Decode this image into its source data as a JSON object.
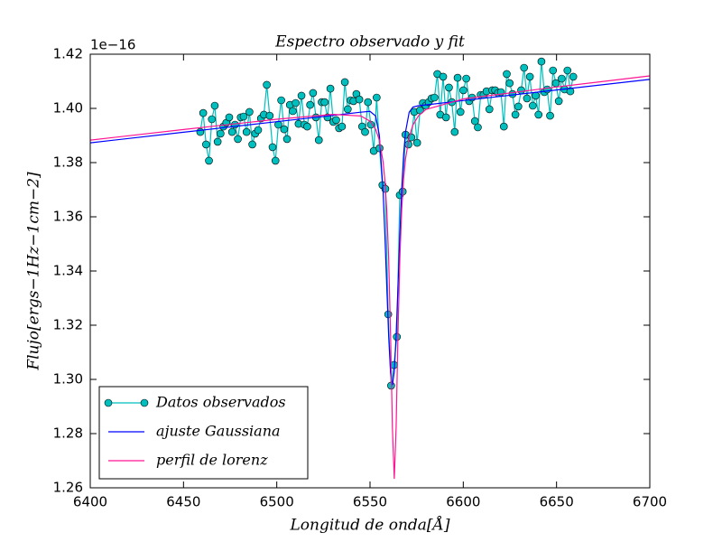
{
  "chart_data": {
    "type": "line",
    "title": "Espectro observado y fit",
    "xlabel": "Longitud de onda[Å]",
    "ylabel": "Flujo[ergs−1Hz−1cm−2]",
    "y_offset_label": "1e−16",
    "xlim": [
      6400,
      6700
    ],
    "ylim": [
      1.26,
      1.42
    ],
    "xticks": [
      6400,
      6450,
      6500,
      6550,
      6600,
      6650,
      6700
    ],
    "yticks": [
      1.26,
      1.28,
      {
        "value": 1.3,
        "label": "1.30"
      },
      1.32,
      1.34,
      1.36,
      1.38,
      {
        "value": 1.4,
        "label": "1.40"
      },
      1.42
    ],
    "legend": "lower left",
    "series": [
      {
        "name": "Datos observados",
        "color": "#00bfbf",
        "marker": "o",
        "x": [
          6459.0,
          6460.55,
          6462.1,
          6463.65,
          6465.2,
          6466.75,
          6468.3,
          6469.85,
          6471.4,
          6472.95,
          6474.5,
          6476.05,
          6477.6,
          6479.15,
          6480.7,
          6482.25,
          6483.8,
          6485.35,
          6486.9,
          6488.45,
          6490.0,
          6491.55,
          6493.1,
          6494.65,
          6496.2,
          6497.75,
          6499.3,
          6500.85,
          6502.4,
          6503.95,
          6505.5,
          6507.05,
          6508.6,
          6510.15,
          6511.7,
          6513.25,
          6514.8,
          6516.35,
          6517.9,
          6519.45,
          6521.0,
          6522.55,
          6524.1,
          6525.65,
          6527.2,
          6528.75,
          6530.3,
          6531.85,
          6533.4,
          6534.95,
          6536.5,
          6538.05,
          6539.6,
          6541.15,
          6542.7,
          6544.25,
          6545.8,
          6547.35,
          6548.9,
          6550.45,
          6552.0,
          6553.55,
          6555.1,
          6556.65,
          6558.2,
          6559.75,
          6561.3,
          6562.85,
          6564.4,
          6565.95,
          6567.5,
          6569.05,
          6570.6,
          6572.15,
          6573.7,
          6575.25,
          6576.8,
          6578.35,
          6579.9,
          6581.45,
          6583.0,
          6584.55,
          6586.1,
          6587.65,
          6589.2,
          6590.75,
          6592.3,
          6593.85,
          6595.4,
          6596.95,
          6598.5,
          6600.05,
          6601.6,
          6603.15,
          6604.7,
          6606.25,
          6607.8,
          6609.35,
          6610.9,
          6612.45,
          6614.0,
          6615.55,
          6617.1,
          6618.65,
          6620.2,
          6621.75,
          6623.3,
          6624.85,
          6626.4,
          6627.95,
          6629.5,
          6631.05,
          6632.6,
          6634.15,
          6635.7,
          6637.25,
          6638.8,
          6640.35,
          6641.9,
          6643.45,
          6645.0,
          6646.55,
          6648.1,
          6649.65,
          6651.2,
          6652.75,
          6654.3,
          6655.85,
          6657.4,
          6658.95
        ],
        "values": [
          1.3913,
          1.3983,
          1.3867,
          1.3807,
          1.396,
          1.401,
          1.3877,
          1.3907,
          1.3933,
          1.3947,
          1.3967,
          1.3913,
          1.394,
          1.3887,
          1.3967,
          1.397,
          1.3913,
          1.3987,
          1.3867,
          1.3907,
          1.392,
          1.3963,
          1.3977,
          1.4087,
          1.3973,
          1.3857,
          1.3807,
          1.394,
          1.403,
          1.3923,
          1.3887,
          1.4013,
          1.399,
          1.402,
          1.3943,
          1.4047,
          1.394,
          1.3933,
          1.4013,
          1.4057,
          1.3967,
          1.3883,
          1.4023,
          1.4023,
          1.3967,
          1.4073,
          1.395,
          1.3957,
          1.3927,
          1.3933,
          1.4097,
          1.3997,
          1.403,
          1.4027,
          1.4053,
          1.4033,
          1.3933,
          1.3913,
          1.4023,
          1.394,
          1.3843,
          1.404,
          1.3853,
          1.3717,
          1.3703,
          1.324,
          1.2977,
          1.3053,
          1.3157,
          1.368,
          1.3693,
          1.3903,
          1.3867,
          1.3893,
          1.3987,
          1.3873,
          1.3993,
          1.402,
          1.401,
          1.4023,
          1.4037,
          1.404,
          1.4127,
          1.3977,
          1.4117,
          1.3967,
          1.4077,
          1.4023,
          1.3913,
          1.4113,
          1.3987,
          1.4067,
          1.411,
          1.4027,
          1.404,
          1.3953,
          1.393,
          1.405,
          1.405,
          1.4063,
          1.3997,
          1.4067,
          1.4067,
          1.4057,
          1.406,
          1.3933,
          1.4127,
          1.4093,
          1.4053,
          1.3977,
          1.4007,
          1.4067,
          1.415,
          1.4037,
          1.4117,
          1.401,
          1.4047,
          1.3977,
          1.4173,
          1.406,
          1.407,
          1.3973,
          1.414,
          1.4093,
          1.4027,
          1.411,
          1.407,
          1.414,
          1.4063,
          1.4117
        ]
      },
      {
        "name": "ajuste Gaussiana",
        "color": "#0000ff",
        "x": [
          6400,
          6450,
          6500,
          6530,
          6545,
          6550,
          6553,
          6555,
          6557,
          6558,
          6559,
          6560,
          6561,
          6562,
          6563,
          6564,
          6565,
          6566,
          6567,
          6568,
          6569,
          6571,
          6573,
          6576,
          6580,
          6600,
          6650,
          6700
        ],
        "values": [
          1.3873,
          1.3912,
          1.3951,
          1.3974,
          1.3986,
          1.3989,
          1.3972,
          1.3901,
          1.3694,
          1.3529,
          1.3339,
          1.3159,
          1.3027,
          1.2979,
          1.3029,
          1.3162,
          1.3344,
          1.3535,
          1.3702,
          1.3828,
          1.3912,
          1.3986,
          1.4005,
          1.401,
          1.4013,
          1.4029,
          1.4068,
          1.4107
        ]
      },
      {
        "name": "perfil de lorenz",
        "color": "#ff1493",
        "x": [
          6400,
          6450,
          6500,
          6530,
          6545,
          6550,
          6553,
          6555,
          6557,
          6558,
          6559,
          6560,
          6561,
          6562,
          6563,
          6564,
          6565,
          6566,
          6567,
          6568,
          6569,
          6571,
          6573,
          6576,
          6580,
          6600,
          6650,
          6700
        ],
        "values": [
          1.3883,
          1.3922,
          1.396,
          1.3978,
          1.3972,
          1.3953,
          1.3923,
          1.3883,
          1.3803,
          1.3732,
          1.3622,
          1.3445,
          1.3169,
          1.2822,
          1.2633,
          1.2824,
          1.3173,
          1.3449,
          1.3628,
          1.374,
          1.3813,
          1.3895,
          1.3939,
          1.3973,
          1.3996,
          1.4035,
          1.4079,
          1.412
        ]
      }
    ]
  }
}
